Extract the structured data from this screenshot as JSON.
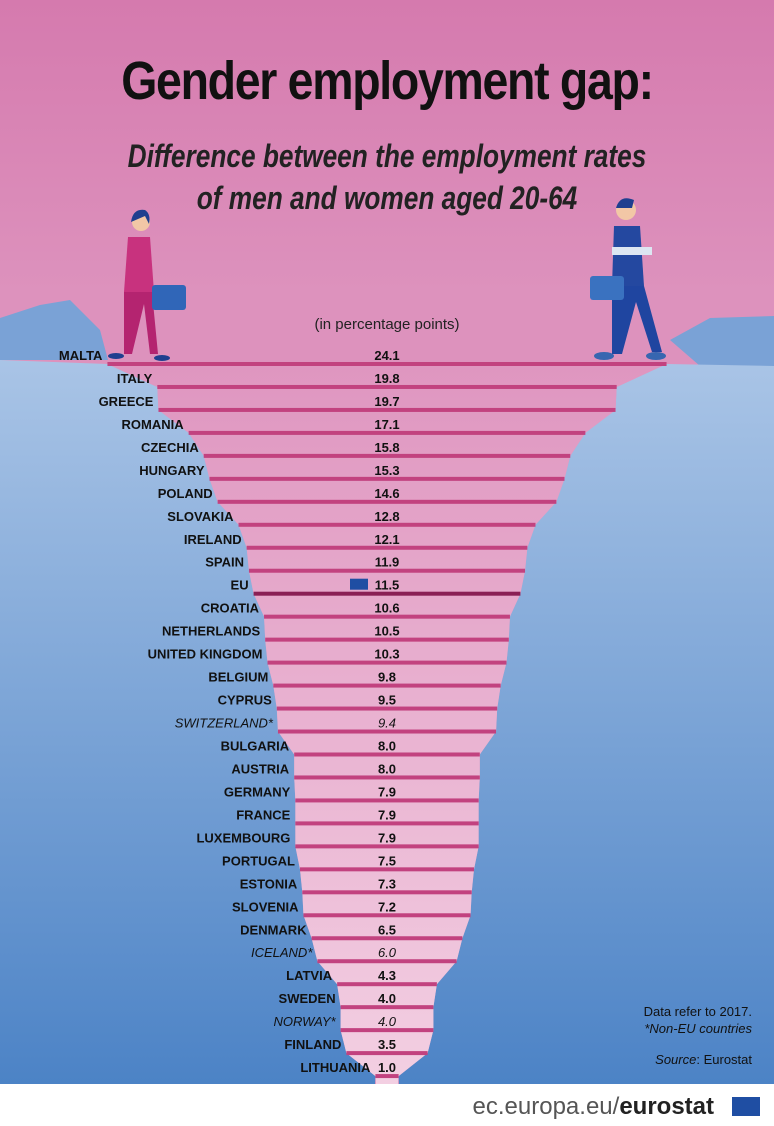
{
  "title": "Gender employment gap:",
  "subtitle_line1": "Difference between the employment rates",
  "subtitle_line2": "of men and women aged 20-64",
  "unit_label": "(in percentage points)",
  "notes": {
    "year": "Data refer to 2017.",
    "non_eu": "*Non-EU countries",
    "source_label": "Source",
    "source_value": ": Eurostat"
  },
  "footer": {
    "domain": "ec.europa.eu/",
    "brand": "eurostat"
  },
  "colors": {
    "bg_top": "#d77fb0",
    "bg_bottom": "#4f86c8",
    "bar": "#c2427f",
    "fill": "#eab4d1",
    "eu_bar": "#8a1f55"
  },
  "chart_data": {
    "type": "bar",
    "orientation": "horizontal-centered",
    "categories": [
      "MALTA",
      "ITALY",
      "GREECE",
      "ROMANIA",
      "CZECHIA",
      "HUNGARY",
      "POLAND",
      "SLOVAKIA",
      "IRELAND",
      "SPAIN",
      "EU",
      "CROATIA",
      "NETHERLANDS",
      "UNITED KINGDOM",
      "BELGIUM",
      "CYPRUS",
      "SWITZERLAND*",
      "BULGARIA",
      "AUSTRIA",
      "GERMANY",
      "FRANCE",
      "LUXEMBOURG",
      "PORTUGAL",
      "ESTONIA",
      "SLOVENIA",
      "DENMARK",
      "ICELAND*",
      "LATVIA",
      "SWEDEN",
      "NORWAY*",
      "FINLAND",
      "LITHUANIA"
    ],
    "values": [
      24.1,
      19.8,
      19.7,
      17.1,
      15.8,
      15.3,
      14.6,
      12.8,
      12.1,
      11.9,
      11.5,
      10.6,
      10.5,
      10.3,
      9.8,
      9.5,
      9.4,
      8.0,
      8.0,
      7.9,
      7.9,
      7.9,
      7.5,
      7.3,
      7.2,
      6.5,
      6.0,
      4.3,
      4.0,
      4.0,
      3.5,
      1.0
    ],
    "labels": [
      "24.1",
      "19.8",
      "19.7",
      "17.1",
      "15.8",
      "15.3",
      "14.6",
      "12.8",
      "12.1",
      "11.9",
      "11.5",
      "10.6",
      "10.5",
      "10.3",
      "9.8",
      "9.5",
      "9.4",
      "8.0",
      "8.0",
      "7.9",
      "7.9",
      "7.9",
      "7.5",
      "7.3",
      "7.2",
      "6.5",
      "6.0",
      "4.3",
      "4.0",
      "4.0",
      "3.5",
      "1.0"
    ],
    "non_eu": [
      "SWITZERLAND*",
      "ICELAND*",
      "NORWAY*"
    ],
    "highlight": "EU",
    "sort": "descending"
  }
}
